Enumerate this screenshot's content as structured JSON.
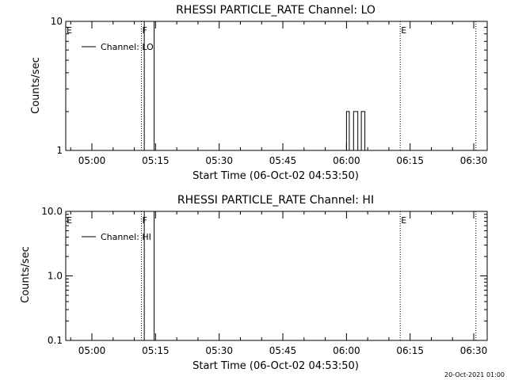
{
  "footer_timestamp": "20-Oct-2021 01:00",
  "chart_data": [
    {
      "type": "line",
      "title": "RHESSI PARTICLE_RATE Channel: LO",
      "xlabel": "Start Time (06-Oct-02 04:53:50)",
      "ylabel": "Counts/sec",
      "yscale": "log",
      "ylim": [
        1,
        10
      ],
      "y_ticks": [
        1,
        10
      ],
      "y_tick_labels": [
        "1",
        "10"
      ],
      "xlim": [
        "04:53:50",
        "06:33:10"
      ],
      "x_ticks": [
        "05:00",
        "05:15",
        "05:30",
        "05:45",
        "06:00",
        "06:15",
        "06:30"
      ],
      "markers": [
        {
          "label": "E",
          "time": "04:53:50"
        },
        {
          "label": "F",
          "time": "05:11:40"
        },
        {
          "label": "E",
          "time": "06:12:40"
        },
        {
          "label": "",
          "time": "06:30:30"
        }
      ],
      "series": [
        {
          "name": "Channel: LO",
          "x": [
            "05:12:20",
            "05:12:20",
            "05:14:40",
            "05:14:40",
            "06:00:00",
            "06:00:00",
            "06:00:40",
            "06:00:40",
            "06:01:40",
            "06:01:40",
            "06:02:40",
            "06:02:40",
            "06:03:30",
            "06:03:30",
            "06:04:20",
            "06:04:20"
          ],
          "y": [
            1,
            10,
            10,
            1,
            1,
            2,
            2,
            1,
            1,
            2,
            2,
            1,
            1,
            2,
            2,
            1
          ]
        }
      ]
    },
    {
      "type": "line",
      "title": "RHESSI PARTICLE_RATE Channel: HI",
      "xlabel": "Start Time (06-Oct-02 04:53:50)",
      "ylabel": "Counts/sec",
      "yscale": "log",
      "ylim": [
        0.1,
        10
      ],
      "y_ticks": [
        0.1,
        1,
        10
      ],
      "y_tick_labels": [
        "0.1",
        "1.0",
        "10.0"
      ],
      "xlim": [
        "04:53:50",
        "06:33:10"
      ],
      "x_ticks": [
        "05:00",
        "05:15",
        "05:30",
        "05:45",
        "06:00",
        "06:15",
        "06:30"
      ],
      "markers": [
        {
          "label": "E",
          "time": "04:53:50"
        },
        {
          "label": "F",
          "time": "05:11:40"
        },
        {
          "label": "E",
          "time": "06:12:40"
        },
        {
          "label": "",
          "time": "06:30:30"
        }
      ],
      "series": [
        {
          "name": "Channel: HI",
          "x": [
            "05:12:20",
            "05:12:20",
            "05:14:40",
            "05:14:40"
          ],
          "y": [
            0.1,
            10,
            10,
            0.1
          ]
        }
      ]
    }
  ]
}
